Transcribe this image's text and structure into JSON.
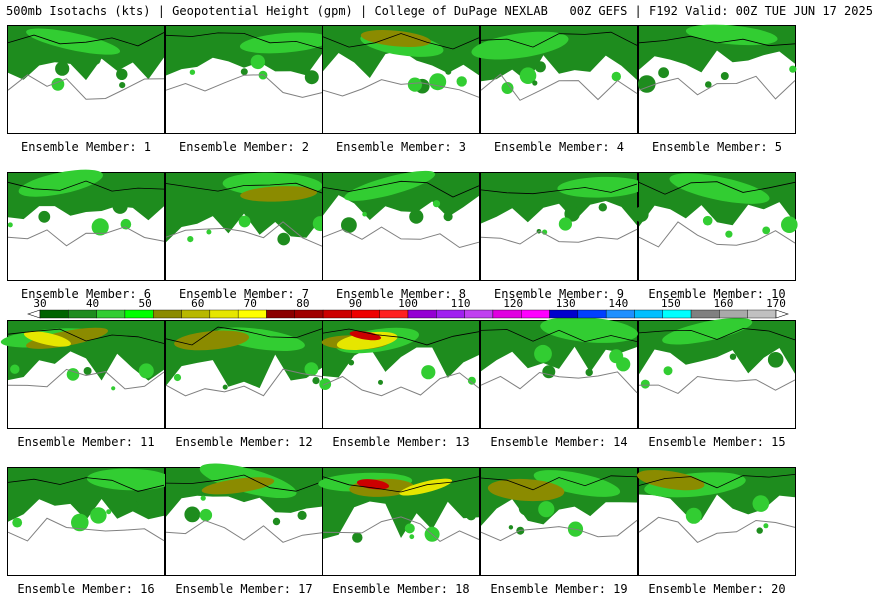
{
  "header": {
    "title": "500mb Isotachs (kts) | Geopotential Height (gpm) | College of DuPage NEXLAB   00Z GEFS | F192 Valid: 00Z TUE JUN 17 2025"
  },
  "colorbar": {
    "labels": [
      "30",
      "40",
      "50",
      "60",
      "70",
      "80",
      "90",
      "100",
      "110",
      "120",
      "130",
      "140",
      "150",
      "160",
      "170"
    ],
    "colors": [
      "#006400",
      "#1e8c1e",
      "#32cd32",
      "#00ff00",
      "#8b8b00",
      "#b8b800",
      "#e6e600",
      "#ffff00",
      "#8b0000",
      "#a00000",
      "#cc0000",
      "#ee0000",
      "#ff2020",
      "#9400d3",
      "#a020f0",
      "#c040f0",
      "#e000e0",
      "#ff00ff",
      "#0000cd",
      "#0040ff",
      "#1e90ff",
      "#00bfff",
      "#00ffff",
      "#808080",
      "#a9a9a9",
      "#c0c0c0"
    ]
  },
  "member_label_prefix": "Ensemble Member: ",
  "members": [
    {
      "n": "1",
      "intensity": 1,
      "north": 0.55
    },
    {
      "n": "2",
      "intensity": 1,
      "north": 0.6
    },
    {
      "n": "3",
      "intensity": 2,
      "north": 0.5
    },
    {
      "n": "4",
      "intensity": 1,
      "north": 0.7
    },
    {
      "n": "5",
      "intensity": 1,
      "north": 0.45
    },
    {
      "n": "6",
      "intensity": 1,
      "north": 0.45
    },
    {
      "n": "7",
      "intensity": 2,
      "north": 0.95
    },
    {
      "n": "8",
      "intensity": 1,
      "north": 0.4
    },
    {
      "n": "9",
      "intensity": 1,
      "north": 0.55
    },
    {
      "n": "10",
      "intensity": 1,
      "north": 0.6
    },
    {
      "n": "11",
      "intensity": 3,
      "north": 0.7
    },
    {
      "n": "12",
      "intensity": 2,
      "north": 0.8
    },
    {
      "n": "13",
      "intensity": 4,
      "north": 0.6
    },
    {
      "n": "14",
      "intensity": 1,
      "north": 0.5
    },
    {
      "n": "15",
      "intensity": 1,
      "north": 0.55
    },
    {
      "n": "16",
      "intensity": 1,
      "north": 0.55
    },
    {
      "n": "17",
      "intensity": 2,
      "north": 0.45
    },
    {
      "n": "18",
      "intensity": 4,
      "north": 0.85
    },
    {
      "n": "19",
      "intensity": 2,
      "north": 0.6
    },
    {
      "n": "20",
      "intensity": 2,
      "north": 0.6
    }
  ]
}
